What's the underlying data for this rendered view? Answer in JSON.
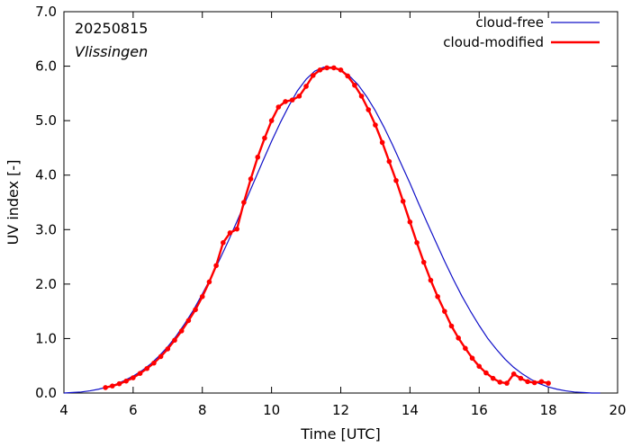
{
  "chart_data": {
    "type": "line",
    "title": "",
    "annotations": {
      "date": "20250815",
      "station": "Vlissingen"
    },
    "xlabel": "Time  [UTC]",
    "ylabel": "UV index  [-]",
    "xlim": [
      4,
      20
    ],
    "ylim": [
      0,
      7
    ],
    "x_ticks": [
      4,
      6,
      8,
      10,
      12,
      14,
      16,
      18,
      20
    ],
    "x_tick_labels": [
      "4",
      "6",
      "8",
      "10",
      "12",
      "14",
      "16",
      "18",
      "20"
    ],
    "y_ticks": [
      0,
      1,
      2,
      3,
      4,
      5,
      6,
      7
    ],
    "y_tick_labels": [
      "0.0",
      "1.0",
      "2.0",
      "3.0",
      "4.0",
      "5.0",
      "6.0",
      "7.0"
    ],
    "grid": false,
    "legend_position": "top-right",
    "series": [
      {
        "name": "cloud-free",
        "color": "#1010c8",
        "markers": false,
        "x": [
          4.0,
          4.25,
          4.5,
          4.75,
          5.0,
          5.25,
          5.5,
          5.75,
          6.0,
          6.25,
          6.5,
          6.75,
          7.0,
          7.25,
          7.5,
          7.75,
          8.0,
          8.25,
          8.5,
          8.75,
          9.0,
          9.25,
          9.5,
          9.75,
          10.0,
          10.25,
          10.5,
          10.75,
          11.0,
          11.25,
          11.5,
          11.75,
          12.0,
          12.25,
          12.5,
          12.75,
          13.0,
          13.25,
          13.5,
          13.75,
          14.0,
          14.25,
          14.5,
          14.75,
          15.0,
          15.25,
          15.5,
          15.75,
          16.0,
          16.25,
          16.5,
          16.75,
          17.0,
          17.25,
          17.5,
          17.75,
          18.0,
          18.25,
          18.5,
          18.75,
          19.0,
          19.25,
          19.5
        ],
        "y": [
          0.0,
          0.01,
          0.02,
          0.04,
          0.07,
          0.11,
          0.16,
          0.23,
          0.31,
          0.41,
          0.53,
          0.68,
          0.85,
          1.05,
          1.28,
          1.53,
          1.82,
          2.12,
          2.45,
          2.79,
          3.15,
          3.52,
          3.89,
          4.26,
          4.62,
          4.96,
          5.27,
          5.55,
          5.76,
          5.91,
          5.98,
          5.98,
          5.93,
          5.82,
          5.66,
          5.44,
          5.18,
          4.88,
          4.55,
          4.2,
          3.85,
          3.48,
          3.12,
          2.77,
          2.42,
          2.09,
          1.78,
          1.5,
          1.24,
          1.0,
          0.8,
          0.62,
          0.47,
          0.35,
          0.25,
          0.17,
          0.11,
          0.07,
          0.04,
          0.02,
          0.01,
          0.0,
          0.0
        ]
      },
      {
        "name": "cloud-modified",
        "color": "#ff0000",
        "markers": true,
        "x": [
          5.2,
          5.4,
          5.6,
          5.8,
          6.0,
          6.2,
          6.4,
          6.6,
          6.8,
          7.0,
          7.2,
          7.4,
          7.6,
          7.8,
          8.0,
          8.2,
          8.4,
          8.6,
          8.8,
          9.0,
          9.2,
          9.4,
          9.6,
          9.8,
          10.0,
          10.2,
          10.4,
          10.6,
          10.8,
          11.0,
          11.2,
          11.4,
          11.6,
          11.8,
          12.0,
          12.2,
          12.4,
          12.6,
          12.8,
          13.0,
          13.2,
          13.4,
          13.6,
          13.8,
          14.0,
          14.2,
          14.4,
          14.6,
          14.8,
          15.0,
          15.2,
          15.4,
          15.6,
          15.8,
          16.0,
          16.2,
          16.4,
          16.6,
          16.8,
          17.0,
          17.2,
          17.4,
          17.6,
          17.8,
          18.0
        ],
        "y": [
          0.1,
          0.13,
          0.17,
          0.22,
          0.28,
          0.36,
          0.45,
          0.55,
          0.67,
          0.81,
          0.97,
          1.14,
          1.33,
          1.53,
          1.77,
          2.04,
          2.34,
          2.76,
          2.94,
          3.01,
          3.5,
          3.93,
          4.33,
          4.68,
          5.0,
          5.25,
          5.35,
          5.38,
          5.45,
          5.63,
          5.83,
          5.93,
          5.97,
          5.97,
          5.93,
          5.82,
          5.65,
          5.45,
          5.2,
          4.92,
          4.6,
          4.25,
          3.9,
          3.52,
          3.14,
          2.76,
          2.4,
          2.07,
          1.77,
          1.5,
          1.23,
          1.01,
          0.82,
          0.64,
          0.49,
          0.37,
          0.27,
          0.2,
          0.18,
          0.35,
          0.27,
          0.21,
          0.19,
          0.21,
          0.18
        ]
      }
    ]
  }
}
